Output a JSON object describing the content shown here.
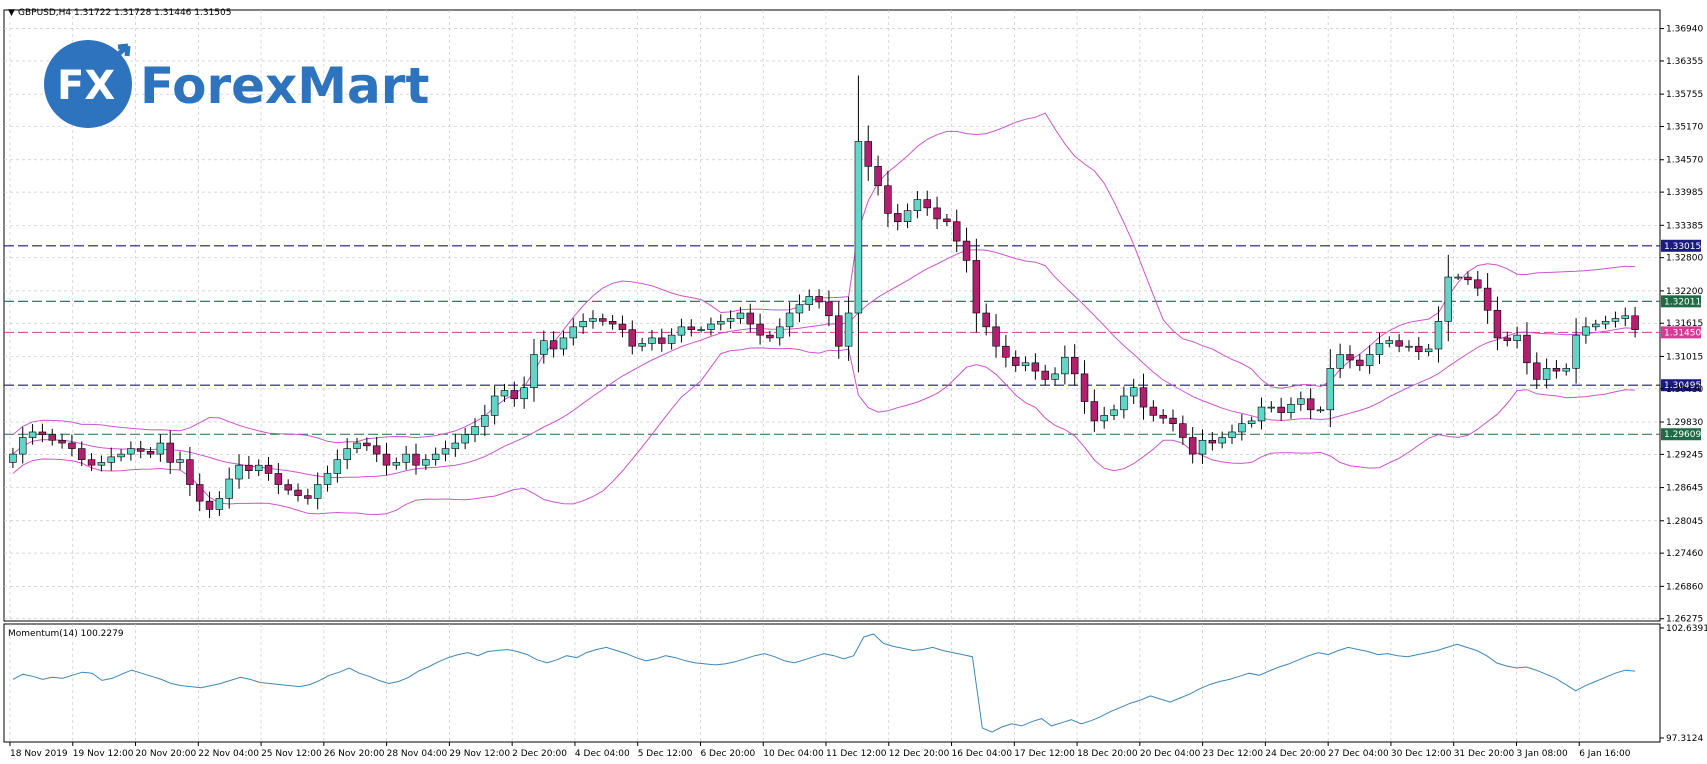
{
  "header": {
    "symbol_info": "GBPUSD,H4  1.31722 1.31728 1.31446 1.31505"
  },
  "logo": {
    "fx": "FX",
    "brand": "ForexMart"
  },
  "colors": {
    "up_candle": "#5fd6c8",
    "down_candle": "#b0206e",
    "bands": "#cc55cc",
    "momentum_line": "#3d87b8",
    "grid": "#c8c8c8",
    "level_blue": "#1a1a80",
    "level_green": "#1e6b45",
    "level_pink": "#d63c96"
  },
  "chart_data": [
    {
      "type": "candlestick",
      "title": "",
      "ylim": [
        1.2627,
        1.3724
      ],
      "grid": true,
      "y_ticks": [
        "1.36940",
        "1.36355",
        "1.35755",
        "1.35170",
        "1.34570",
        "1.33985",
        "1.33385",
        "1.32800",
        "1.32200",
        "1.31615",
        "1.31015",
        "1.30430",
        "1.29830",
        "1.29245",
        "1.28645",
        "1.28045",
        "1.27460",
        "1.26860",
        "1.26275"
      ],
      "x_ticks": [
        "18 Nov 2019",
        "19 Nov 12:00",
        "20 Nov 20:00",
        "22 Nov 04:00",
        "25 Nov 12:00",
        "26 Nov 20:00",
        "28 Nov 04:00",
        "29 Nov 12:00",
        "2 Dec 20:00",
        "4 Dec 04:00",
        "5 Dec 12:00",
        "6 Dec 20:00",
        "10 Dec 04:00",
        "11 Dec 12:00",
        "12 Dec 20:00",
        "16 Dec 04:00",
        "17 Dec 12:00",
        "18 Dec 20:00",
        "20 Dec 04:00",
        "23 Dec 12:00",
        "24 Dec 20:00",
        "27 Dec 04:00",
        "30 Dec 12:00",
        "31 Dec 20:00",
        "3 Jan 08:00",
        "6 Jan 16:00"
      ],
      "close_series": [
        1.2925,
        1.2955,
        1.2965,
        1.296,
        1.295,
        1.2945,
        1.2935,
        1.2915,
        1.2905,
        1.291,
        1.292,
        1.2925,
        1.2935,
        1.293,
        1.2925,
        1.2945,
        1.291,
        1.2915,
        1.287,
        1.284,
        1.2825,
        1.2845,
        1.288,
        1.2905,
        1.2895,
        1.2905,
        1.289,
        1.287,
        1.286,
        1.285,
        1.2845,
        1.287,
        1.289,
        1.2915,
        1.2935,
        1.2945,
        1.294,
        1.2925,
        1.2905,
        1.291,
        1.2925,
        1.2905,
        1.2915,
        1.2925,
        1.2935,
        1.2945,
        1.296,
        1.2975,
        1.2995,
        1.303,
        1.304,
        1.3025,
        1.3045,
        1.3105,
        1.313,
        1.3115,
        1.3135,
        1.3155,
        1.3165,
        1.317,
        1.3165,
        1.316,
        1.315,
        1.312,
        1.3125,
        1.3135,
        1.3125,
        1.314,
        1.3155,
        1.315,
        1.315,
        1.316,
        1.3165,
        1.317,
        1.318,
        1.316,
        1.314,
        1.3135,
        1.3155,
        1.318,
        1.3195,
        1.321,
        1.32,
        1.3175,
        1.312,
        1.318,
        1.349,
        1.3445,
        1.341,
        1.336,
        1.3345,
        1.3365,
        1.3385,
        1.337,
        1.335,
        1.3345,
        1.331,
        1.3275,
        1.318,
        1.3155,
        1.312,
        1.31,
        1.3085,
        1.309,
        1.3075,
        1.306,
        1.307,
        1.31,
        1.307,
        1.302,
        1.2985,
        1.2995,
        1.3005,
        1.303,
        1.3045,
        1.301,
        1.2995,
        1.299,
        1.298,
        1.2955,
        1.2925,
        1.295,
        1.2945,
        1.2955,
        1.2965,
        1.298,
        1.2985,
        1.301,
        1.301,
        1.3,
        1.3015,
        1.3025,
        1.3005,
        1.3005,
        1.308,
        1.3105,
        1.3095,
        1.3085,
        1.3105,
        1.3125,
        1.313,
        1.312,
        1.312,
        1.311,
        1.3115,
        1.3165,
        1.3245,
        1.3245,
        1.324,
        1.3225,
        1.3185,
        1.3135,
        1.313,
        1.314,
        1.309,
        1.306,
        1.308,
        1.3075,
        1.308,
        1.314,
        1.3155,
        1.316,
        1.3165,
        1.317,
        1.3175,
        1.315
      ],
      "levels": [
        {
          "label": "1.33015",
          "value": 1.33015,
          "color": "#1a1a80"
        },
        {
          "label": "1.32011",
          "value": 1.32011,
          "color": "#1e6b45"
        },
        {
          "label": "1.31450",
          "value": 1.3145,
          "color": "#d63c96"
        },
        {
          "label": "1.30495",
          "value": 1.30495,
          "color": "#1a1a80"
        },
        {
          "label": "1.29609",
          "value": 1.29609,
          "color": "#1e6b45"
        }
      ],
      "indicator": "Bollinger Bands"
    },
    {
      "type": "line",
      "title": "Momentum(14) 100.2279",
      "ylim": [
        97.3124,
        102.6391
      ],
      "y_ticks": [
        "102.6391",
        "97.3124"
      ],
      "series": [
        {
          "values": [
            100.15,
            100.4,
            100.3,
            100.15,
            100.25,
            100.2,
            100.35,
            100.5,
            100.45,
            100.1,
            100.2,
            100.4,
            100.6,
            100.45,
            100.3,
            100.15,
            99.95,
            99.85,
            99.8,
            99.75,
            99.85,
            99.95,
            100.1,
            100.25,
            100.15,
            100.0,
            99.95,
            99.9,
            99.85,
            99.8,
            99.9,
            100.1,
            100.35,
            100.5,
            100.7,
            100.45,
            100.3,
            100.1,
            99.95,
            100.05,
            100.25,
            100.55,
            100.75,
            101.0,
            101.2,
            101.35,
            101.45,
            101.3,
            101.5,
            101.55,
            101.6,
            101.5,
            101.35,
            101.1,
            100.95,
            101.1,
            101.3,
            101.2,
            101.45,
            101.6,
            101.7,
            101.55,
            101.4,
            101.2,
            101.05,
            101.15,
            101.3,
            101.2,
            101.05,
            100.95,
            100.9,
            100.85,
            100.9,
            101.0,
            101.15,
            101.3,
            101.4,
            101.25,
            101.05,
            100.95,
            101.1,
            101.25,
            101.4,
            101.3,
            101.15,
            101.3,
            102.2,
            102.35,
            101.9,
            101.75,
            101.65,
            101.55,
            101.6,
            101.7,
            101.55,
            101.45,
            101.35,
            101.25,
            97.8,
            97.6,
            97.85,
            98.0,
            97.9,
            98.1,
            98.25,
            97.9,
            98.05,
            98.2,
            98.0,
            98.15,
            98.35,
            98.6,
            98.8,
            99.0,
            99.15,
            99.35,
            99.2,
            99.05,
            99.25,
            99.45,
            99.7,
            99.9,
            100.05,
            100.15,
            100.3,
            100.45,
            100.35,
            100.55,
            100.75,
            100.9,
            101.1,
            101.3,
            101.45,
            101.35,
            101.55,
            101.7,
            101.6,
            101.5,
            101.35,
            101.4,
            101.3,
            101.25,
            101.35,
            101.45,
            101.55,
            101.7,
            101.85,
            101.7,
            101.55,
            101.3,
            100.95,
            100.8,
            100.7,
            100.75,
            100.6,
            100.4,
            100.2,
            99.9,
            99.6,
            99.85,
            100.05,
            100.25,
            100.45,
            100.6,
            100.55
          ]
        }
      ]
    }
  ]
}
